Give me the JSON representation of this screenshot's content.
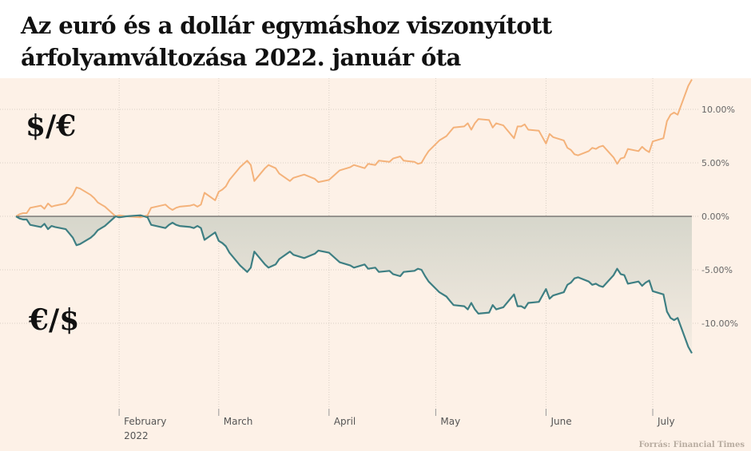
{
  "title": "Az euró és a dollár egymáshoz viszonyított árfolyamváltozása 2022. január óta",
  "source": "Forrás: Financial Times",
  "chart_data": {
    "type": "line",
    "title": "Az euró és a dollár egymáshoz viszonyított árfolyamváltozása 2022. január óta",
    "ylim": [
      -15,
      13
    ],
    "y_ticks": [
      {
        "value": 10,
        "label": "10.00%"
      },
      {
        "value": 5,
        "label": "5.00%"
      },
      {
        "value": 0,
        "label": "0.00%"
      },
      {
        "value": -5,
        "label": "-5.00%"
      },
      {
        "value": -10,
        "label": "-10.00%"
      }
    ],
    "x_ticks": [
      {
        "date": "2022-02-01",
        "label": "February",
        "sublabel": "2022"
      },
      {
        "date": "2022-03-01",
        "label": "March",
        "sublabel": ""
      },
      {
        "date": "2022-04-01",
        "label": "April",
        "sublabel": ""
      },
      {
        "date": "2022-05-01",
        "label": "May",
        "sublabel": ""
      },
      {
        "date": "2022-06-01",
        "label": "June",
        "sublabel": ""
      },
      {
        "date": "2022-07-01",
        "label": "July",
        "sublabel": ""
      }
    ],
    "x_start": "2022-01-03",
    "x_end": "2022-07-12",
    "colors": {
      "usd_per_eur": "#f4b27a",
      "eur_per_usd": "#3e7f83",
      "fill": "#d6d6cb",
      "zero_line": "#444444"
    },
    "series": [
      {
        "name": "$/€",
        "key": "usd_per_eur",
        "points": [
          [
            "2022-01-03",
            0.0
          ],
          [
            "2022-01-04",
            0.2
          ],
          [
            "2022-01-05",
            0.3
          ],
          [
            "2022-01-06",
            0.3
          ],
          [
            "2022-01-07",
            0.8
          ],
          [
            "2022-01-10",
            1.0
          ],
          [
            "2022-01-11",
            0.7
          ],
          [
            "2022-01-12",
            1.2
          ],
          [
            "2022-01-13",
            0.9
          ],
          [
            "2022-01-14",
            1.0
          ],
          [
            "2022-01-17",
            1.2
          ],
          [
            "2022-01-18",
            1.6
          ],
          [
            "2022-01-19",
            2.0
          ],
          [
            "2022-01-20",
            2.7
          ],
          [
            "2022-01-21",
            2.6
          ],
          [
            "2022-01-24",
            2.0
          ],
          [
            "2022-01-25",
            1.7
          ],
          [
            "2022-01-26",
            1.3
          ],
          [
            "2022-01-27",
            1.1
          ],
          [
            "2022-01-28",
            0.9
          ],
          [
            "2022-01-31",
            0.0
          ],
          [
            "2022-02-01",
            0.1
          ],
          [
            "2022-02-03",
            0.0
          ],
          [
            "2022-02-07",
            -0.1
          ],
          [
            "2022-02-08",
            0.0
          ],
          [
            "2022-02-09",
            0.1
          ],
          [
            "2022-02-10",
            0.8
          ],
          [
            "2022-02-14",
            1.1
          ],
          [
            "2022-02-15",
            0.8
          ],
          [
            "2022-02-16",
            0.6
          ],
          [
            "2022-02-17",
            0.8
          ],
          [
            "2022-02-18",
            0.9
          ],
          [
            "2022-02-21",
            1.0
          ],
          [
            "2022-02-22",
            1.1
          ],
          [
            "2022-02-23",
            0.9
          ],
          [
            "2022-02-24",
            1.1
          ],
          [
            "2022-02-25",
            2.2
          ],
          [
            "2022-02-28",
            1.5
          ],
          [
            "2022-03-01",
            2.3
          ],
          [
            "2022-03-02",
            2.5
          ],
          [
            "2022-03-03",
            2.8
          ],
          [
            "2022-03-04",
            3.4
          ],
          [
            "2022-03-07",
            4.6
          ],
          [
            "2022-03-09",
            5.2
          ],
          [
            "2022-03-10",
            4.8
          ],
          [
            "2022-03-11",
            3.3
          ],
          [
            "2022-03-14",
            4.5
          ],
          [
            "2022-03-15",
            4.8
          ],
          [
            "2022-03-17",
            4.5
          ],
          [
            "2022-03-18",
            4.0
          ],
          [
            "2022-03-21",
            3.3
          ],
          [
            "2022-03-22",
            3.6
          ],
          [
            "2022-03-24",
            3.8
          ],
          [
            "2022-03-25",
            3.9
          ],
          [
            "2022-03-28",
            3.5
          ],
          [
            "2022-03-29",
            3.2
          ],
          [
            "2022-04-01",
            3.4
          ],
          [
            "2022-04-04",
            4.3
          ],
          [
            "2022-04-07",
            4.6
          ],
          [
            "2022-04-08",
            4.8
          ],
          [
            "2022-04-11",
            4.5
          ],
          [
            "2022-04-12",
            4.9
          ],
          [
            "2022-04-14",
            4.8
          ],
          [
            "2022-04-15",
            5.2
          ],
          [
            "2022-04-18",
            5.1
          ],
          [
            "2022-04-19",
            5.4
          ],
          [
            "2022-04-21",
            5.6
          ],
          [
            "2022-04-22",
            5.2
          ],
          [
            "2022-04-25",
            5.1
          ],
          [
            "2022-04-26",
            4.9
          ],
          [
            "2022-04-27",
            5.0
          ],
          [
            "2022-04-28",
            5.6
          ],
          [
            "2022-04-29",
            6.1
          ],
          [
            "2022-05-02",
            7.1
          ],
          [
            "2022-05-04",
            7.5
          ],
          [
            "2022-05-05",
            7.9
          ],
          [
            "2022-05-06",
            8.3
          ],
          [
            "2022-05-09",
            8.4
          ],
          [
            "2022-05-10",
            8.7
          ],
          [
            "2022-05-11",
            8.1
          ],
          [
            "2022-05-12",
            8.7
          ],
          [
            "2022-05-13",
            9.1
          ],
          [
            "2022-05-16",
            9.0
          ],
          [
            "2022-05-17",
            8.3
          ],
          [
            "2022-05-18",
            8.7
          ],
          [
            "2022-05-19",
            8.6
          ],
          [
            "2022-05-20",
            8.5
          ],
          [
            "2022-05-23",
            7.3
          ],
          [
            "2022-05-24",
            8.4
          ],
          [
            "2022-05-25",
            8.4
          ],
          [
            "2022-05-26",
            8.6
          ],
          [
            "2022-05-27",
            8.1
          ],
          [
            "2022-05-30",
            8.0
          ],
          [
            "2022-06-01",
            6.8
          ],
          [
            "2022-06-02",
            7.7
          ],
          [
            "2022-06-03",
            7.4
          ],
          [
            "2022-06-06",
            7.1
          ],
          [
            "2022-06-07",
            6.4
          ],
          [
            "2022-06-08",
            6.2
          ],
          [
            "2022-06-09",
            5.8
          ],
          [
            "2022-06-10",
            5.7
          ],
          [
            "2022-06-13",
            6.1
          ],
          [
            "2022-06-14",
            6.4
          ],
          [
            "2022-06-15",
            6.3
          ],
          [
            "2022-06-16",
            6.5
          ],
          [
            "2022-06-17",
            6.6
          ],
          [
            "2022-06-20",
            5.5
          ],
          [
            "2022-06-21",
            4.9
          ],
          [
            "2022-06-22",
            5.4
          ],
          [
            "2022-06-23",
            5.5
          ],
          [
            "2022-06-24",
            6.3
          ],
          [
            "2022-06-27",
            6.1
          ],
          [
            "2022-06-28",
            6.5
          ],
          [
            "2022-06-29",
            6.2
          ],
          [
            "2022-06-30",
            6.0
          ],
          [
            "2022-07-01",
            7.0
          ],
          [
            "2022-07-04",
            7.3
          ],
          [
            "2022-07-05",
            8.9
          ],
          [
            "2022-07-06",
            9.5
          ],
          [
            "2022-07-07",
            9.7
          ],
          [
            "2022-07-08",
            9.5
          ],
          [
            "2022-07-11",
            12.2
          ],
          [
            "2022-07-12",
            12.8
          ]
        ]
      },
      {
        "name": "€/$",
        "key": "eur_per_usd",
        "points": [
          [
            "2022-01-03",
            0.0
          ],
          [
            "2022-01-04",
            -0.2
          ],
          [
            "2022-01-05",
            -0.3
          ],
          [
            "2022-01-06",
            -0.3
          ],
          [
            "2022-01-07",
            -0.8
          ],
          [
            "2022-01-10",
            -1.0
          ],
          [
            "2022-01-11",
            -0.7
          ],
          [
            "2022-01-12",
            -1.2
          ],
          [
            "2022-01-13",
            -0.9
          ],
          [
            "2022-01-14",
            -1.0
          ],
          [
            "2022-01-17",
            -1.2
          ],
          [
            "2022-01-18",
            -1.6
          ],
          [
            "2022-01-19",
            -2.0
          ],
          [
            "2022-01-20",
            -2.7
          ],
          [
            "2022-01-21",
            -2.6
          ],
          [
            "2022-01-24",
            -2.0
          ],
          [
            "2022-01-25",
            -1.7
          ],
          [
            "2022-01-26",
            -1.3
          ],
          [
            "2022-01-27",
            -1.1
          ],
          [
            "2022-01-28",
            -0.9
          ],
          [
            "2022-01-31",
            0.0
          ],
          [
            "2022-02-01",
            -0.1
          ],
          [
            "2022-02-03",
            0.0
          ],
          [
            "2022-02-07",
            0.1
          ],
          [
            "2022-02-08",
            0.0
          ],
          [
            "2022-02-09",
            -0.1
          ],
          [
            "2022-02-10",
            -0.8
          ],
          [
            "2022-02-14",
            -1.1
          ],
          [
            "2022-02-15",
            -0.8
          ],
          [
            "2022-02-16",
            -0.6
          ],
          [
            "2022-02-17",
            -0.8
          ],
          [
            "2022-02-18",
            -0.9
          ],
          [
            "2022-02-21",
            -1.0
          ],
          [
            "2022-02-22",
            -1.1
          ],
          [
            "2022-02-23",
            -0.9
          ],
          [
            "2022-02-24",
            -1.1
          ],
          [
            "2022-02-25",
            -2.2
          ],
          [
            "2022-02-28",
            -1.5
          ],
          [
            "2022-03-01",
            -2.3
          ],
          [
            "2022-03-02",
            -2.5
          ],
          [
            "2022-03-03",
            -2.8
          ],
          [
            "2022-03-04",
            -3.4
          ],
          [
            "2022-03-07",
            -4.6
          ],
          [
            "2022-03-09",
            -5.2
          ],
          [
            "2022-03-10",
            -4.8
          ],
          [
            "2022-03-11",
            -3.3
          ],
          [
            "2022-03-14",
            -4.5
          ],
          [
            "2022-03-15",
            -4.8
          ],
          [
            "2022-03-17",
            -4.5
          ],
          [
            "2022-03-18",
            -4.0
          ],
          [
            "2022-03-21",
            -3.3
          ],
          [
            "2022-03-22",
            -3.6
          ],
          [
            "2022-03-24",
            -3.8
          ],
          [
            "2022-03-25",
            -3.9
          ],
          [
            "2022-03-28",
            -3.5
          ],
          [
            "2022-03-29",
            -3.2
          ],
          [
            "2022-04-01",
            -3.4
          ],
          [
            "2022-04-04",
            -4.3
          ],
          [
            "2022-04-07",
            -4.6
          ],
          [
            "2022-04-08",
            -4.8
          ],
          [
            "2022-04-11",
            -4.5
          ],
          [
            "2022-04-12",
            -4.9
          ],
          [
            "2022-04-14",
            -4.8
          ],
          [
            "2022-04-15",
            -5.2
          ],
          [
            "2022-04-18",
            -5.1
          ],
          [
            "2022-04-19",
            -5.4
          ],
          [
            "2022-04-21",
            -5.6
          ],
          [
            "2022-04-22",
            -5.2
          ],
          [
            "2022-04-25",
            -5.1
          ],
          [
            "2022-04-26",
            -4.9
          ],
          [
            "2022-04-27",
            -5.0
          ],
          [
            "2022-04-28",
            -5.6
          ],
          [
            "2022-04-29",
            -6.1
          ],
          [
            "2022-05-02",
            -7.1
          ],
          [
            "2022-05-04",
            -7.5
          ],
          [
            "2022-05-05",
            -7.9
          ],
          [
            "2022-05-06",
            -8.3
          ],
          [
            "2022-05-09",
            -8.4
          ],
          [
            "2022-05-10",
            -8.7
          ],
          [
            "2022-05-11",
            -8.1
          ],
          [
            "2022-05-12",
            -8.7
          ],
          [
            "2022-05-13",
            -9.1
          ],
          [
            "2022-05-16",
            -9.0
          ],
          [
            "2022-05-17",
            -8.3
          ],
          [
            "2022-05-18",
            -8.7
          ],
          [
            "2022-05-19",
            -8.6
          ],
          [
            "2022-05-20",
            -8.5
          ],
          [
            "2022-05-23",
            -7.3
          ],
          [
            "2022-05-24",
            -8.4
          ],
          [
            "2022-05-25",
            -8.4
          ],
          [
            "2022-05-26",
            -8.6
          ],
          [
            "2022-05-27",
            -8.1
          ],
          [
            "2022-05-30",
            -8.0
          ],
          [
            "2022-06-01",
            -6.8
          ],
          [
            "2022-06-02",
            -7.7
          ],
          [
            "2022-06-03",
            -7.4
          ],
          [
            "2022-06-06",
            -7.1
          ],
          [
            "2022-06-07",
            -6.4
          ],
          [
            "2022-06-08",
            -6.2
          ],
          [
            "2022-06-09",
            -5.8
          ],
          [
            "2022-06-10",
            -5.7
          ],
          [
            "2022-06-13",
            -6.1
          ],
          [
            "2022-06-14",
            -6.4
          ],
          [
            "2022-06-15",
            -6.3
          ],
          [
            "2022-06-16",
            -6.5
          ],
          [
            "2022-06-17",
            -6.6
          ],
          [
            "2022-06-20",
            -5.5
          ],
          [
            "2022-06-21",
            -4.9
          ],
          [
            "2022-06-22",
            -5.4
          ],
          [
            "2022-06-23",
            -5.5
          ],
          [
            "2022-06-24",
            -6.3
          ],
          [
            "2022-06-27",
            -6.1
          ],
          [
            "2022-06-28",
            -6.5
          ],
          [
            "2022-06-29",
            -6.2
          ],
          [
            "2022-06-30",
            -6.0
          ],
          [
            "2022-07-01",
            -7.0
          ],
          [
            "2022-07-04",
            -7.3
          ],
          [
            "2022-07-05",
            -8.9
          ],
          [
            "2022-07-06",
            -9.5
          ],
          [
            "2022-07-07",
            -9.7
          ],
          [
            "2022-07-08",
            -9.5
          ],
          [
            "2022-07-11",
            -12.2
          ],
          [
            "2022-07-12",
            -12.8
          ]
        ]
      }
    ]
  }
}
